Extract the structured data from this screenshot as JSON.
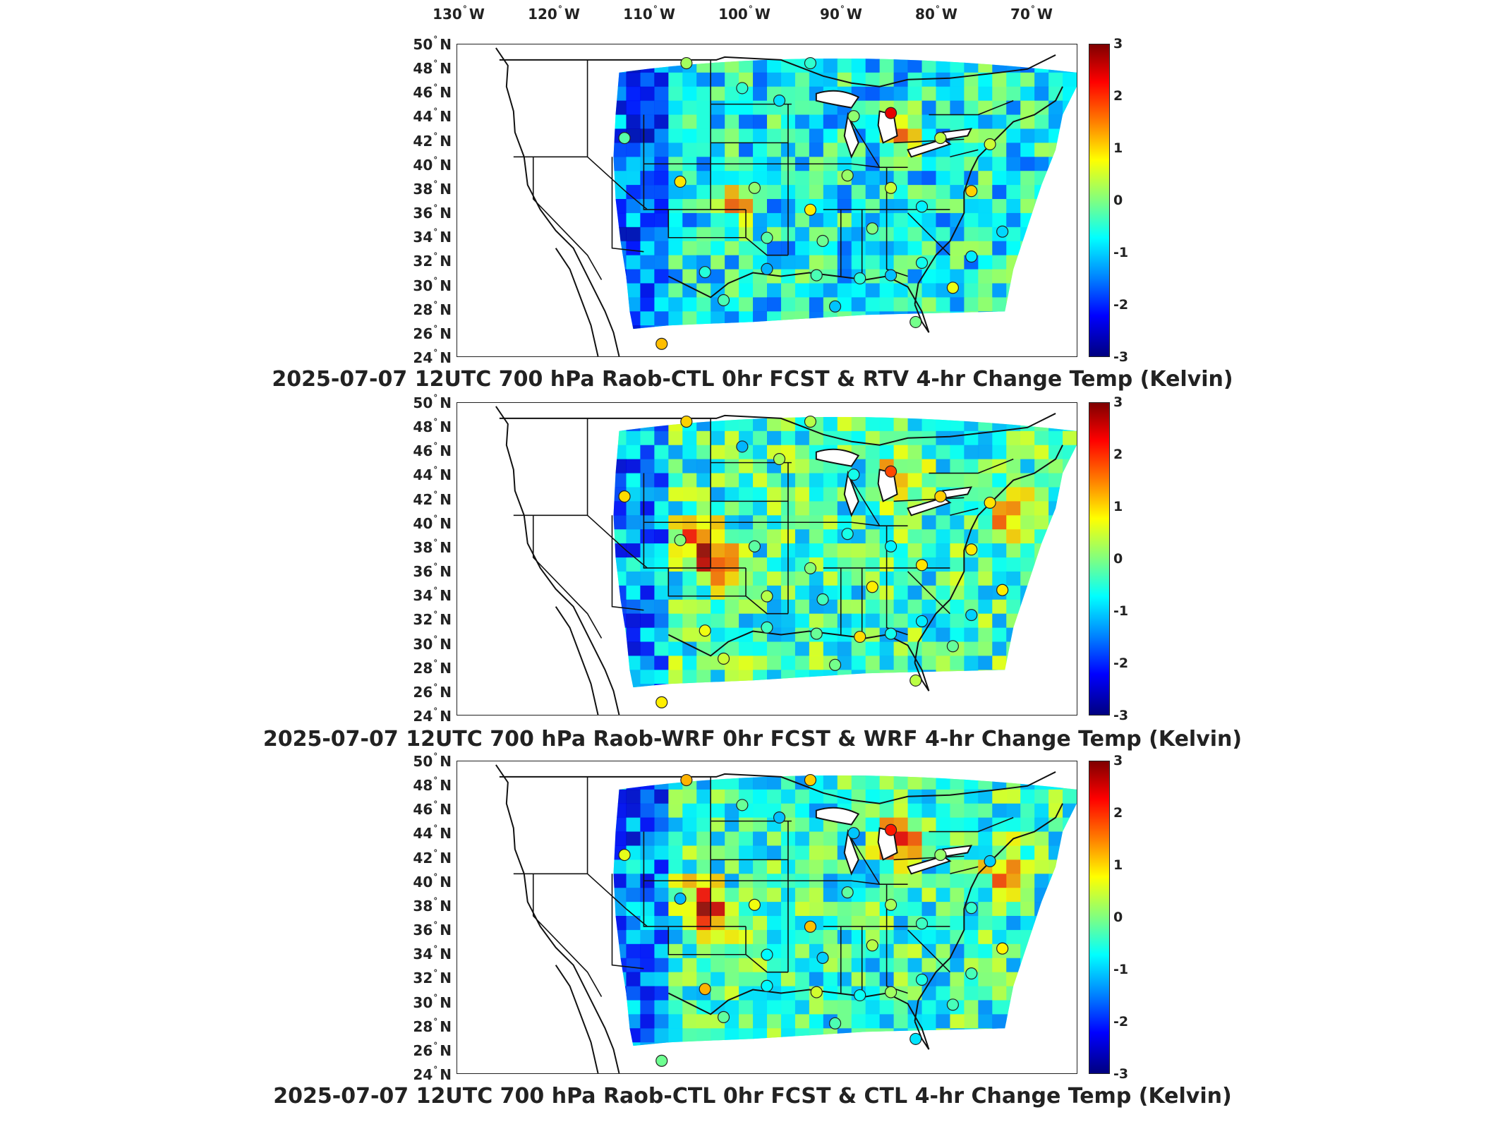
{
  "lon_ticks": [
    {
      "deg": "130",
      "hemi": "W"
    },
    {
      "deg": "120",
      "hemi": "W"
    },
    {
      "deg": "110",
      "hemi": "W"
    },
    {
      "deg": "100",
      "hemi": "W"
    },
    {
      "deg": "90",
      "hemi": "W"
    },
    {
      "deg": "80",
      "hemi": "W"
    },
    {
      "deg": "70",
      "hemi": "W"
    }
  ],
  "lat_ticks": [
    {
      "deg": "50",
      "hemi": "N"
    },
    {
      "deg": "48",
      "hemi": "N"
    },
    {
      "deg": "46",
      "hemi": "N"
    },
    {
      "deg": "44",
      "hemi": "N"
    },
    {
      "deg": "42",
      "hemi": "N"
    },
    {
      "deg": "40",
      "hemi": "N"
    },
    {
      "deg": "38",
      "hemi": "N"
    },
    {
      "deg": "36",
      "hemi": "N"
    },
    {
      "deg": "34",
      "hemi": "N"
    },
    {
      "deg": "32",
      "hemi": "N"
    },
    {
      "deg": "30",
      "hemi": "N"
    },
    {
      "deg": "28",
      "hemi": "N"
    },
    {
      "deg": "26",
      "hemi": "N"
    },
    {
      "deg": "24",
      "hemi": "N"
    }
  ],
  "colorbar": {
    "ticks": [
      "3",
      "2",
      "1",
      "0",
      "-1",
      "-2",
      "-3"
    ],
    "range": [
      -3,
      3
    ],
    "colormap": "jet"
  },
  "panels": [
    {
      "title": "2025-07-07 12UTC 700 hPa Raob-CTL 0hr FCST & RTV 4-hr Change Temp (Kelvin)"
    },
    {
      "title": "2025-07-07 12UTC 700 hPa Raob-WRF 0hr FCST & WRF 4-hr Change Temp (Kelvin)"
    },
    {
      "title": "2025-07-07 12UTC 700 hPa Raob-CTL 0hr FCST & CTL 4-hr Change Temp (Kelvin)"
    }
  ],
  "colors": {
    "border": "#222222",
    "background": "#ffffff"
  }
}
